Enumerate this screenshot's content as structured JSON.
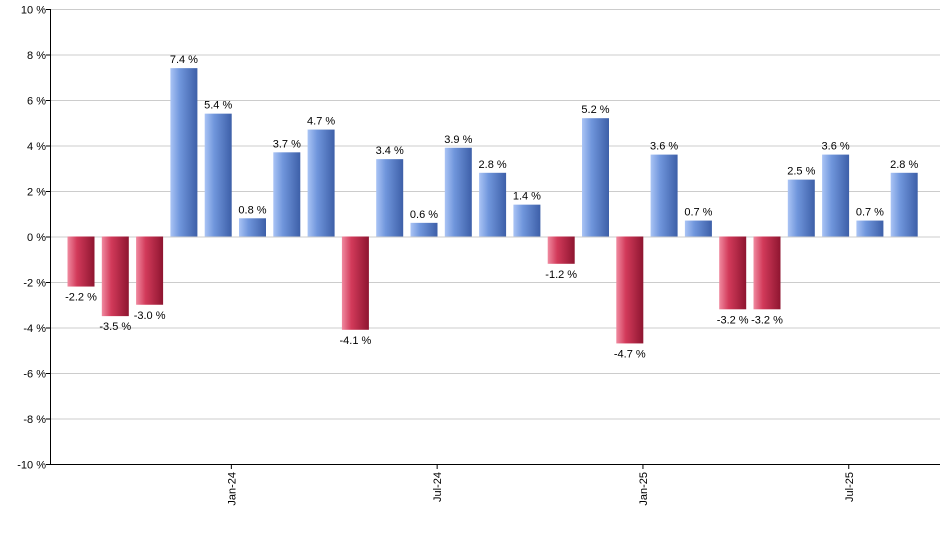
{
  "chart_data": {
    "type": "bar",
    "title": "",
    "xlabel": "",
    "ylabel": "",
    "ylim": [
      -10,
      10
    ],
    "y_ticks": [
      {
        "value": 10,
        "label": "10 %"
      },
      {
        "value": 8,
        "label": "8 %"
      },
      {
        "value": 6,
        "label": "6 %"
      },
      {
        "value": 4,
        "label": "4 %"
      },
      {
        "value": 2,
        "label": "2 %"
      },
      {
        "value": 0,
        "label": "0 %"
      },
      {
        "value": -2,
        "label": "-2 %"
      },
      {
        "value": -4,
        "label": "-4 %"
      },
      {
        "value": -6,
        "label": "-6 %"
      },
      {
        "value": -8,
        "label": "-8 %"
      },
      {
        "value": -10,
        "label": "-10 %"
      }
    ],
    "grid": true,
    "legend": "none",
    "x_ticks": [
      {
        "index": 5,
        "label": "Jan-24"
      },
      {
        "index": 11,
        "label": "Jul-24"
      },
      {
        "index": 17,
        "label": "Jan-25"
      },
      {
        "index": 23,
        "label": "Jul-25"
      }
    ],
    "values": [
      -2.2,
      -3.5,
      -3.0,
      7.4,
      5.4,
      0.8,
      3.7,
      4.7,
      -4.1,
      3.4,
      0.6,
      3.9,
      2.8,
      1.4,
      -1.2,
      5.2,
      -4.7,
      3.6,
      0.7,
      -3.2,
      -3.2,
      2.5,
      3.6,
      0.7,
      2.8
    ],
    "labels": [
      "-2.2 %",
      "-3.5 %",
      "-3.0 %",
      "7.4 %",
      "5.4 %",
      "0.8 %",
      "3.7 %",
      "4.7 %",
      "-4.1 %",
      "3.4 %",
      "0.6 %",
      "3.9 %",
      "2.8 %",
      "1.4 %",
      "-1.2 %",
      "5.2 %",
      "-4.7 %",
      "3.6 %",
      "0.7 %",
      "-3.2 %",
      "-3.2 %",
      "2.5 %",
      "3.6 %",
      "0.7 %",
      "2.8 %"
    ],
    "colors": {
      "positive_light": "#aac4f5",
      "positive_mid": "#7096dc",
      "positive_dark": "#3d5fa8",
      "negative_light": "#f08aa0",
      "negative_mid": "#d23a5a",
      "negative_dark": "#8e1530",
      "grid": "#cccccc",
      "axis": "#000000"
    }
  }
}
